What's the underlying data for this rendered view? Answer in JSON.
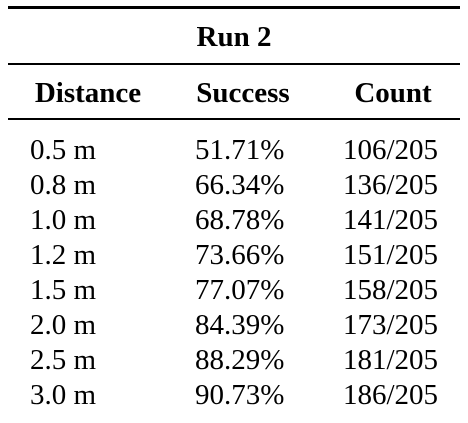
{
  "table": {
    "title": "Run 2",
    "columns": [
      "Distance",
      "Success",
      "Count"
    ],
    "rows": [
      [
        "0.5 m",
        "51.71%",
        "106/205"
      ],
      [
        "0.8 m",
        "66.34%",
        "136/205"
      ],
      [
        "1.0 m",
        "68.78%",
        "141/205"
      ],
      [
        "1.2 m",
        "73.66%",
        "151/205"
      ],
      [
        "1.5 m",
        "77.07%",
        "158/205"
      ],
      [
        "2.0 m",
        "84.39%",
        "173/205"
      ],
      [
        "2.5 m",
        "88.29%",
        "181/205"
      ],
      [
        "3.0 m",
        "90.73%",
        "186/205"
      ]
    ]
  }
}
